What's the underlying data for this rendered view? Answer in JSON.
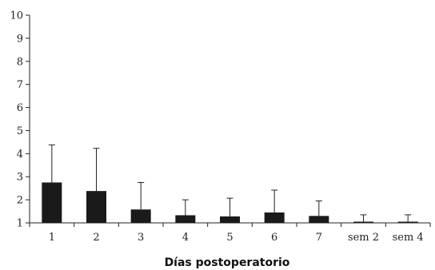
{
  "chart_data": {
    "type": "bar",
    "title": "",
    "xlabel": "Días postoperatorio",
    "ylabel": "",
    "ylim": [
      1,
      10
    ],
    "yticks": [
      1,
      2,
      3,
      4,
      5,
      6,
      7,
      8,
      9,
      10
    ],
    "categories": [
      "1",
      "2",
      "3",
      "4",
      "5",
      "6",
      "7",
      "sem 2",
      "sem 4"
    ],
    "values": [
      2.75,
      2.38,
      1.58,
      1.33,
      1.28,
      1.45,
      1.3,
      1.05,
      1.05
    ],
    "error_upper": [
      4.38,
      4.23,
      2.75,
      2.0,
      2.07,
      2.42,
      1.95,
      1.35,
      1.35
    ],
    "grid": false,
    "legend": "none",
    "bar_color": "#1a1a1a"
  }
}
